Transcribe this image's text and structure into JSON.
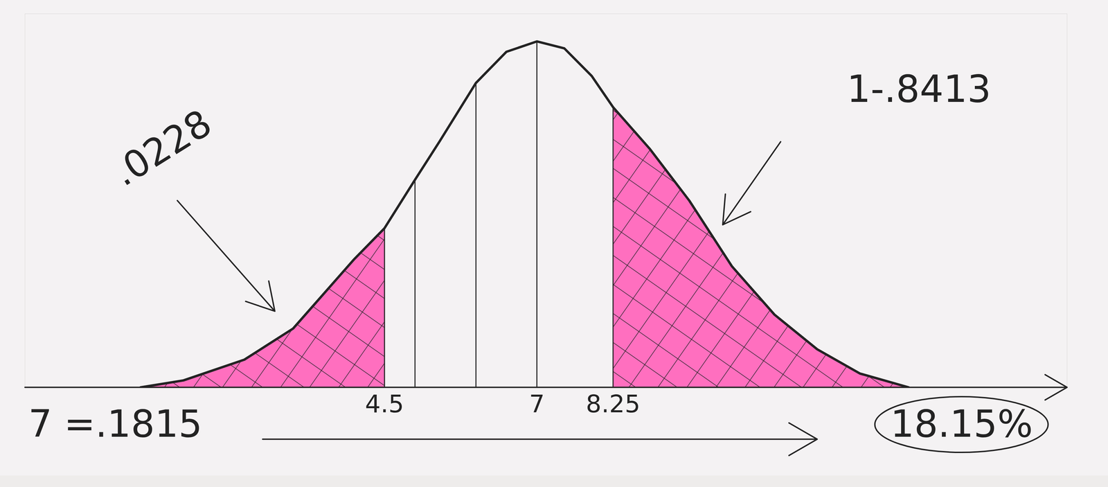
{
  "chart_data": {
    "type": "area",
    "x": [
      0.5,
      1.2,
      2.2,
      3.0,
      4.0,
      4.5,
      5.0,
      5.4,
      6.0,
      6.5,
      7,
      7.45,
      7.9,
      8.25,
      8.85,
      9.5,
      10.2,
      10.9,
      11.6,
      12.3,
      13.1
    ],
    "values": [
      0,
      0.02,
      0.08,
      0.17,
      0.37,
      0.46,
      0.6,
      0.71,
      0.88,
      0.97,
      1,
      0.98,
      0.9,
      0.81,
      0.69,
      0.54,
      0.35,
      0.21,
      0.11,
      0.04,
      0
    ],
    "color": "#ff6fbf",
    "xlim": [
      -1.4,
      15.7
    ],
    "ylim": [
      0,
      1.08
    ],
    "xticks": [
      4.5,
      7,
      8.25
    ],
    "tick_labels": "x",
    "grid": false,
    "vlines": [
      5,
      6,
      7
    ],
    "shaded": [
      {
        "from": 0.5,
        "to": 4.5,
        "label": ".0228"
      },
      {
        "from": 8.25,
        "to": 13.1,
        "label": "1-.8413"
      }
    ],
    "equation": "7 =.1815",
    "result": "18.15%"
  }
}
